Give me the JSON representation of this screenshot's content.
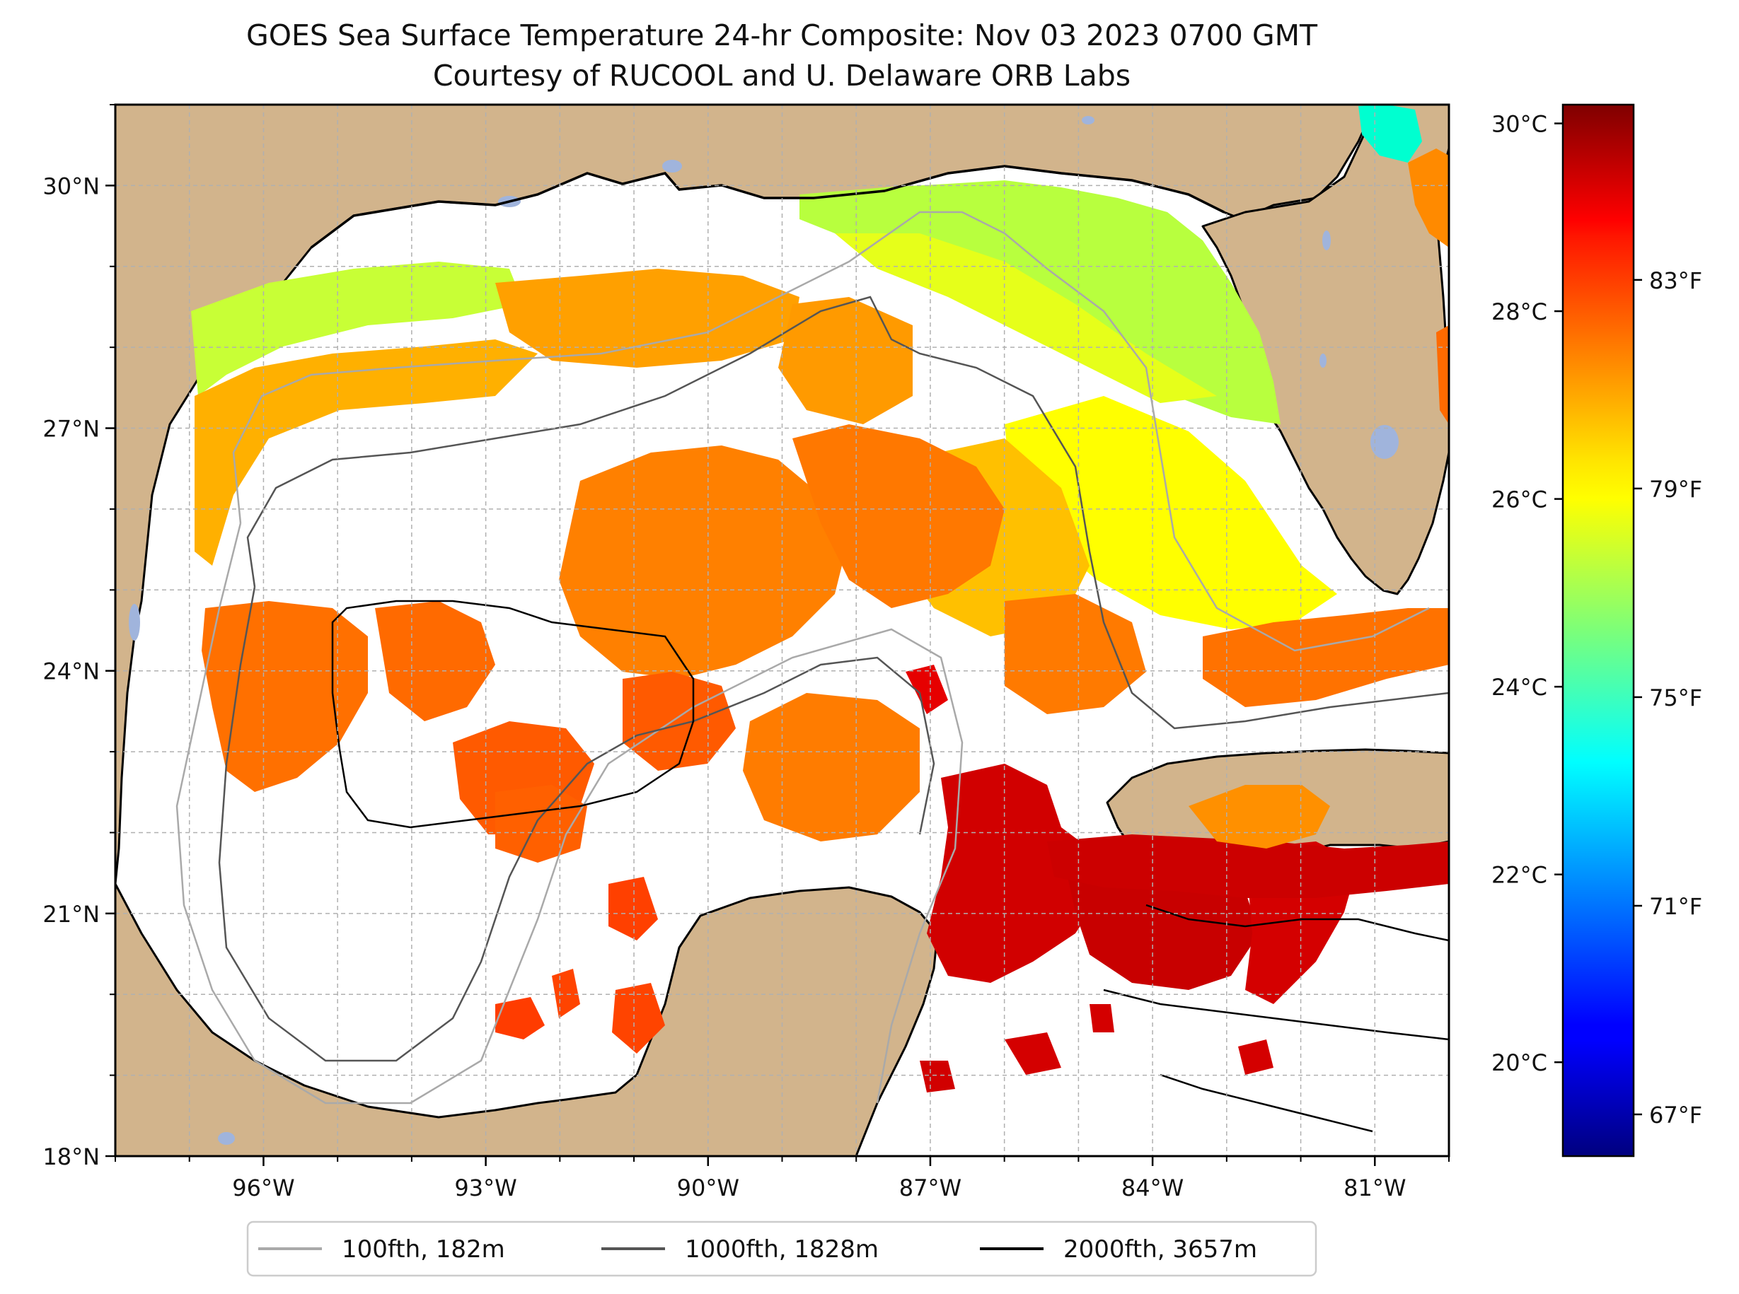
{
  "title": {
    "line1": "GOES Sea Surface Temperature 24-hr Composite: Nov 03 2023 0700 GMT",
    "line2": "Courtesy of RUCOOL and U. Delaware ORB Labs"
  },
  "map": {
    "lon_range": [
      -98,
      -80
    ],
    "lat_range": [
      18,
      31
    ],
    "lon_ticks": [
      {
        "value": -96,
        "label": "96°W"
      },
      {
        "value": -93,
        "label": "93°W"
      },
      {
        "value": -90,
        "label": "90°W"
      },
      {
        "value": -87,
        "label": "87°W"
      },
      {
        "value": -84,
        "label": "84°W"
      },
      {
        "value": -81,
        "label": "81°W"
      }
    ],
    "lat_ticks": [
      {
        "value": 30,
        "label": "30°N"
      },
      {
        "value": 27,
        "label": "27°N"
      },
      {
        "value": 24,
        "label": "24°N"
      },
      {
        "value": 21,
        "label": "21°N"
      },
      {
        "value": 18,
        "label": "18°N"
      }
    ],
    "gridlines": true,
    "colors": {
      "land": "#d2b48c",
      "lakes": "#a0b4dc",
      "coastline": "#000000",
      "grid": "#b0b0b0"
    }
  },
  "colorbar": {
    "colormap": "jet",
    "celsius_range": [
      19,
      30.2
    ],
    "celsius_ticks": [
      {
        "value": 30,
        "label": "30°C"
      },
      {
        "value": 28,
        "label": "28°C"
      },
      {
        "value": 26,
        "label": "26°C"
      },
      {
        "value": 24,
        "label": "24°C"
      },
      {
        "value": 22,
        "label": "22°C"
      },
      {
        "value": 20,
        "label": "20°C"
      }
    ],
    "fahrenheit_ticks": [
      {
        "value": 83,
        "label": "83°F"
      },
      {
        "value": 79,
        "label": "79°F"
      },
      {
        "value": 75,
        "label": "75°F"
      },
      {
        "value": 71,
        "label": "71°F"
      },
      {
        "value": 67,
        "label": "67°F"
      }
    ]
  },
  "legend": {
    "placement": "bottom-center",
    "items": [
      {
        "label": "100fth, 182m",
        "color": "#a9a9a9"
      },
      {
        "label": "1000fth, 1828m",
        "color": "#555555"
      },
      {
        "label": "2000fth, 3657m",
        "color": "#000000"
      }
    ]
  }
}
